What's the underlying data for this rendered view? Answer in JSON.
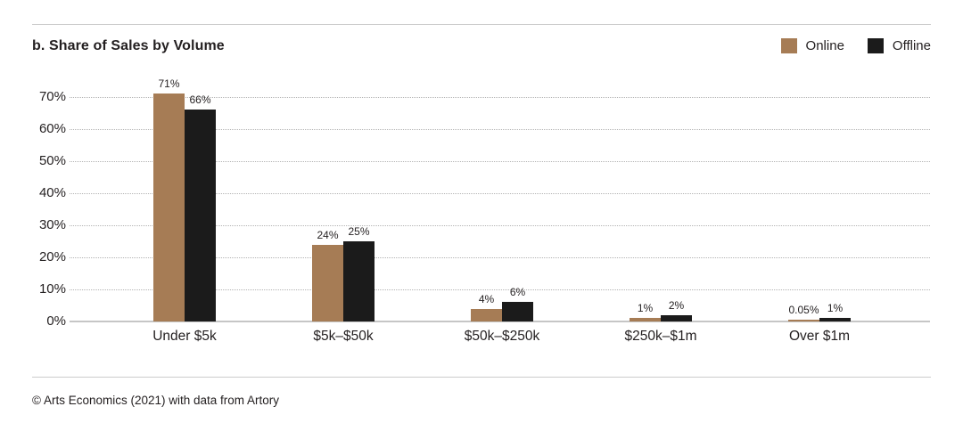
{
  "header": {
    "title": "b. Share of Sales by Volume"
  },
  "chart_data": {
    "type": "bar",
    "title": "b. Share of Sales by Volume",
    "categories": [
      "Under $5k",
      "$5k–$50k",
      "$50k–$250k",
      "$250k–$1m",
      "Over $1m"
    ],
    "series": [
      {
        "name": "Online",
        "color": "#a67c55",
        "values": [
          71,
          24,
          4,
          1,
          0.05
        ],
        "labels": [
          "71%",
          "24%",
          "4%",
          "1%",
          "0.05%"
        ]
      },
      {
        "name": "Offline",
        "color": "#1b1b1b",
        "values": [
          66,
          25,
          6,
          2,
          1
        ],
        "labels": [
          "66%",
          "25%",
          "6%",
          "2%",
          "1%"
        ]
      }
    ],
    "xlabel": "",
    "ylabel": "",
    "ylim": [
      0,
      70
    ],
    "ytick_step": 10,
    "ytick_suffix": "%",
    "grid": "horizontal-dotted",
    "legend_position": "top-right"
  },
  "footer": {
    "credit": "© Arts Economics (2021) with data from Artory"
  }
}
